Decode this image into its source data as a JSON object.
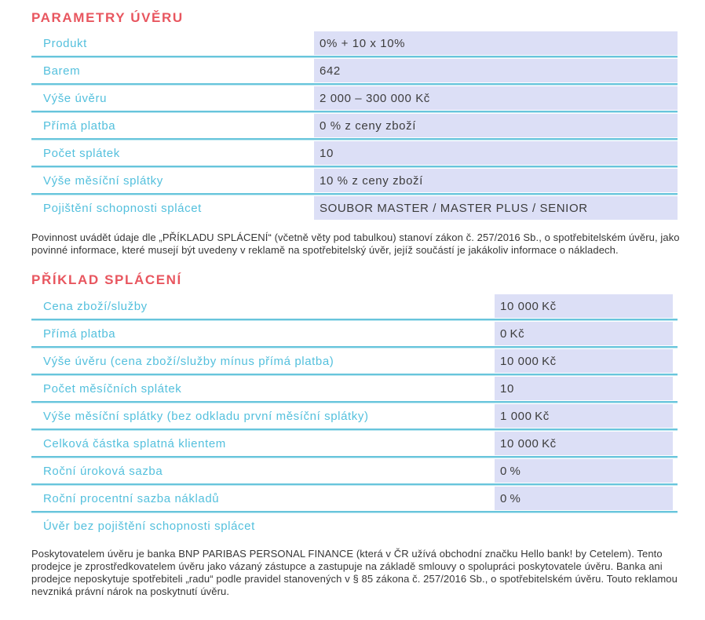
{
  "colors": {
    "title_accent": "#e8565f",
    "label_teal": "#54c0dd",
    "value_bg_lavender": "#dcdff6",
    "row_border_teal": "#68c5dc",
    "body_text": "#363636"
  },
  "section1": {
    "title": "PARAMETRY ÚVĚRU",
    "rows": [
      {
        "label": "Produkt",
        "value": "0% + 10 x 10%"
      },
      {
        "label": "Barem",
        "value": "642"
      },
      {
        "label": "Výše úvěru",
        "value": "2 000 – 300 000 Kč"
      },
      {
        "label": "Přímá platba",
        "value": "0 % z ceny zboží"
      },
      {
        "label": "Počet splátek",
        "value": "10"
      },
      {
        "label": "Výše měsíční splátky",
        "value": "10 % z ceny zboží"
      },
      {
        "label": "Pojištění schopnosti splácet",
        "value": "SOUBOR MASTER / MASTER PLUS / SENIOR"
      }
    ]
  },
  "note1": "Povinnost uvádět údaje dle „PŘÍKLADU SPLÁCENÍ“ (včetně věty pod tabulkou) stanoví zákon č. 257/2016 Sb., o spotřebitelském úvěru, jako povinné informace, které musejí být uvedeny v reklamě na spotřebitelský úvěr, jejíž součástí je jakákoliv informace o nákladech.",
  "section2": {
    "title": "PŘÍKLAD SPLÁCENÍ",
    "rows": [
      {
        "label": "Cena zboží/služby",
        "value": "10 000 Kč"
      },
      {
        "label": "Přímá platba",
        "value": "0 Kč"
      },
      {
        "label": "Výše úvěru (cena zboží/služby mínus přímá platba)",
        "value": "10 000 Kč"
      },
      {
        "label": "Počet měsíčních splátek",
        "value": "10"
      },
      {
        "label": "Výše měsíční splátky (bez odkladu první měsíční splátky)",
        "value": "1 000 Kč"
      },
      {
        "label": "Celková částka splatná klientem",
        "value": "10 000 Kč"
      },
      {
        "label": "Roční úroková sazba",
        "value": "0 %"
      },
      {
        "label": "Roční procentní sazba nákladů",
        "value": "0 %"
      }
    ],
    "footnote": "Úvěr bez pojištění schopnosti splácet"
  },
  "note2": "Poskytovatelem úvěru je banka BNP PARIBAS PERSONAL FINANCE (která v ČR užívá obchodní značku Hello bank! by Cetelem). Tento prodejce je zprostředkovatelem úvěru jako vázaný zástupce a zastupuje na základě smlouvy o spolupráci poskytovatele úvěru. Banka ani prodejce neposkytuje spotřebiteli „radu“ podle pravidel stanovených v § 85 zákona č. 257/2016 Sb., o spotřebitelském úvěru. Touto reklamou nevzniká právní nárok na poskytnutí úvěru."
}
